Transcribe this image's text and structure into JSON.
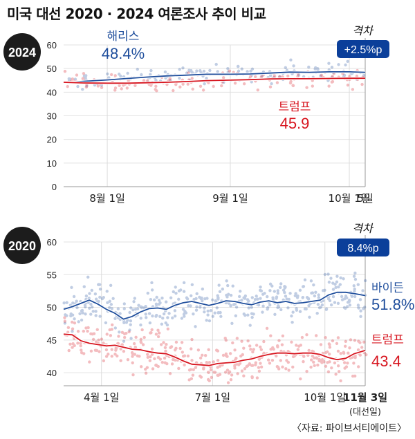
{
  "title": "미국 대선 2020 · 2024 여론조사 추이 비교",
  "source": "〈자료: 파이브서티에이트〉",
  "colors": {
    "dem": "#1f4e9c",
    "rep": "#d7141e",
    "badge": "#0b3f9a",
    "year_circle": "#1c1c1c"
  },
  "chart_data": [
    {
      "type": "line",
      "year_label": "2024",
      "title": "",
      "xlabel": "",
      "ylabel": "",
      "ylim": [
        0,
        60
      ],
      "yticks": [
        0,
        10,
        20,
        30,
        40,
        50,
        60
      ],
      "x_range": [
        "2024-07-21",
        "2024-10-05"
      ],
      "xticks": [
        {
          "date": "2024-08-01",
          "label": "8월 1일"
        },
        {
          "date": "2024-09-01",
          "label": "9월 1일"
        },
        {
          "date": "2024-10-01",
          "label": "10월 1일"
        },
        {
          "date": "2024-10-05",
          "label": "5일"
        }
      ],
      "gap_label": "격차",
      "gap_value": "+2.5%p",
      "series": [
        {
          "name": "해리스",
          "final_label": "48.4%",
          "color_key": "dem",
          "points": [
            [
              "2024-07-21",
              44.0
            ],
            [
              "2024-07-26",
              44.6
            ],
            [
              "2024-08-01",
              45.2
            ],
            [
              "2024-08-06",
              45.8
            ],
            [
              "2024-08-11",
              46.4
            ],
            [
              "2024-08-16",
              46.9
            ],
            [
              "2024-08-21",
              47.2
            ],
            [
              "2024-08-26",
              47.6
            ],
            [
              "2024-09-01",
              47.6
            ],
            [
              "2024-09-06",
              47.7
            ],
            [
              "2024-09-11",
              48.1
            ],
            [
              "2024-09-16",
              48.5
            ],
            [
              "2024-09-21",
              48.4
            ],
            [
              "2024-09-26",
              48.6
            ],
            [
              "2024-10-01",
              48.6
            ],
            [
              "2024-10-05",
              48.4
            ]
          ]
        },
        {
          "name": "트럼프",
          "final_label": "45.9",
          "color_key": "rep",
          "points": [
            [
              "2024-07-21",
              44.2
            ],
            [
              "2024-07-26",
              43.9
            ],
            [
              "2024-08-01",
              43.8
            ],
            [
              "2024-08-06",
              43.8
            ],
            [
              "2024-08-11",
              44.0
            ],
            [
              "2024-08-16",
              44.2
            ],
            [
              "2024-08-21",
              44.5
            ],
            [
              "2024-08-26",
              44.9
            ],
            [
              "2024-09-01",
              45.1
            ],
            [
              "2024-09-06",
              45.3
            ],
            [
              "2024-09-11",
              45.6
            ],
            [
              "2024-09-16",
              45.7
            ],
            [
              "2024-09-21",
              45.7
            ],
            [
              "2024-09-26",
              45.8
            ],
            [
              "2024-10-01",
              45.9
            ],
            [
              "2024-10-05",
              45.9
            ]
          ]
        }
      ]
    },
    {
      "type": "line",
      "year_label": "2020",
      "title": "",
      "xlabel": "",
      "ylabel": "",
      "ylim": [
        38,
        60
      ],
      "yticks": [
        40,
        45,
        50,
        55,
        60
      ],
      "x_range": [
        "2020-03-01",
        "2020-11-03"
      ],
      "xticks": [
        {
          "date": "2020-04-01",
          "label": "4월 1일"
        },
        {
          "date": "2020-07-01",
          "label": "7월 1일"
        },
        {
          "date": "2020-10-01",
          "label": "10월 1일"
        },
        {
          "date": "2020-11-03",
          "label": "11월 3일",
          "sub": "(대선일)"
        }
      ],
      "gap_label": "격차",
      "gap_value": "8.4%p",
      "series": [
        {
          "name": "바이든",
          "final_label": "51.8%",
          "color_key": "dem",
          "points": [
            [
              "2020-03-01",
              49.7
            ],
            [
              "2020-03-08",
              50.1
            ],
            [
              "2020-03-15",
              50.6
            ],
            [
              "2020-03-22",
              51.1
            ],
            [
              "2020-03-29",
              50.5
            ],
            [
              "2020-04-05",
              49.7
            ],
            [
              "2020-04-12",
              49.1
            ],
            [
              "2020-04-19",
              48.2
            ],
            [
              "2020-04-26",
              48.6
            ],
            [
              "2020-05-03",
              49.3
            ],
            [
              "2020-05-10",
              49.8
            ],
            [
              "2020-05-17",
              49.9
            ],
            [
              "2020-05-24",
              49.7
            ],
            [
              "2020-05-31",
              50.3
            ],
            [
              "2020-06-07",
              50.7
            ],
            [
              "2020-06-14",
              50.9
            ],
            [
              "2020-06-21",
              50.6
            ],
            [
              "2020-06-28",
              50.3
            ],
            [
              "2020-07-05",
              50.6
            ],
            [
              "2020-07-12",
              51.0
            ],
            [
              "2020-07-19",
              50.9
            ],
            [
              "2020-07-26",
              50.6
            ],
            [
              "2020-08-02",
              50.4
            ],
            [
              "2020-08-09",
              50.8
            ],
            [
              "2020-08-16",
              51.0
            ],
            [
              "2020-08-23",
              50.7
            ],
            [
              "2020-08-30",
              50.9
            ],
            [
              "2020-09-06",
              50.6
            ],
            [
              "2020-09-13",
              50.7
            ],
            [
              "2020-09-20",
              50.9
            ],
            [
              "2020-09-27",
              51.1
            ],
            [
              "2020-10-04",
              51.9
            ],
            [
              "2020-10-11",
              52.3
            ],
            [
              "2020-10-18",
              52.3
            ],
            [
              "2020-10-25",
              52.1
            ],
            [
              "2020-11-03",
              51.8
            ]
          ]
        },
        {
          "name": "트럼프",
          "final_label": "43.4",
          "color_key": "rep",
          "points": [
            [
              "2020-03-01",
              45.9
            ],
            [
              "2020-03-08",
              45.8
            ],
            [
              "2020-03-15",
              44.9
            ],
            [
              "2020-03-22",
              44.5
            ],
            [
              "2020-03-29",
              44.3
            ],
            [
              "2020-04-05",
              44.1
            ],
            [
              "2020-04-12",
              44.2
            ],
            [
              "2020-04-19",
              43.9
            ],
            [
              "2020-04-26",
              43.6
            ],
            [
              "2020-05-03",
              43.5
            ],
            [
              "2020-05-10",
              43.2
            ],
            [
              "2020-05-17",
              43.0
            ],
            [
              "2020-05-24",
              42.9
            ],
            [
              "2020-05-31",
              42.4
            ],
            [
              "2020-06-07",
              41.8
            ],
            [
              "2020-06-14",
              41.3
            ],
            [
              "2020-06-21",
              41.2
            ],
            [
              "2020-06-28",
              41.1
            ],
            [
              "2020-07-05",
              41.4
            ],
            [
              "2020-07-12",
              41.5
            ],
            [
              "2020-07-19",
              41.6
            ],
            [
              "2020-07-26",
              41.9
            ],
            [
              "2020-08-02",
              42.1
            ],
            [
              "2020-08-09",
              42.5
            ],
            [
              "2020-08-16",
              42.8
            ],
            [
              "2020-08-23",
              43.0
            ],
            [
              "2020-08-30",
              43.0
            ],
            [
              "2020-09-06",
              42.9
            ],
            [
              "2020-09-13",
              43.0
            ],
            [
              "2020-09-20",
              43.0
            ],
            [
              "2020-09-27",
              42.8
            ],
            [
              "2020-10-04",
              42.3
            ],
            [
              "2020-10-11",
              42.0
            ],
            [
              "2020-10-18",
              42.2
            ],
            [
              "2020-10-25",
              42.9
            ],
            [
              "2020-11-03",
              43.4
            ]
          ]
        }
      ]
    }
  ]
}
